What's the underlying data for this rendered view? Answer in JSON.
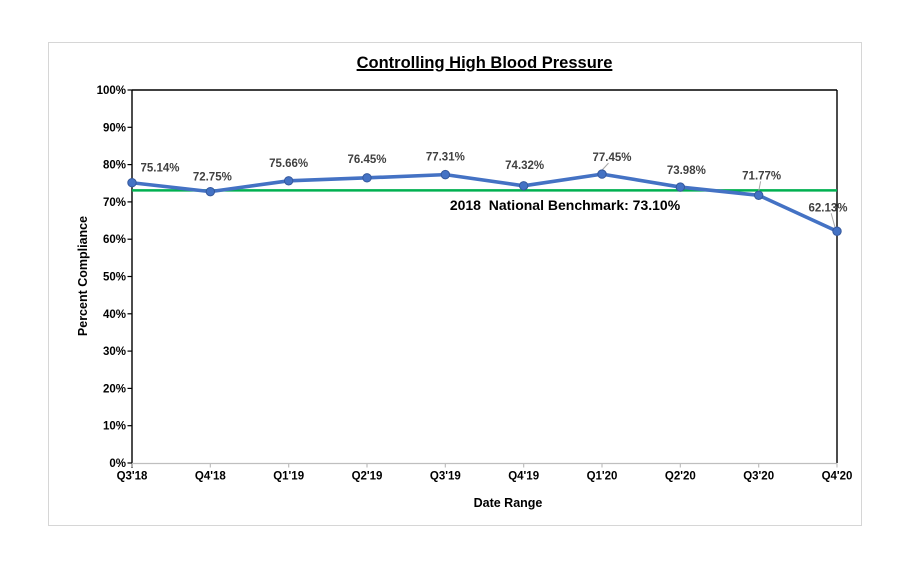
{
  "chart": {
    "title": "Controlling High Blood Pressure",
    "x_axis_title": "Date Range",
    "y_axis_title": "Percent Compliance",
    "benchmark_label": "2018  National Benchmark: 73.10%",
    "colors": {
      "series_line": "#4472C4",
      "marker_fill": "#4472C4",
      "marker_edge": "#35589C",
      "benchmark_line": "#00B050",
      "axis_line": "#000000",
      "x_axis_line": "#BFBFBF",
      "x_tick": "#BFBFBF",
      "data_label": "#404040",
      "leader_line": "#A6A6A6",
      "card_border": "#D6D6D6"
    }
  },
  "chart_data": {
    "type": "line",
    "title": "Controlling High Blood Pressure",
    "xlabel": "Date Range",
    "ylabel": "Percent Compliance",
    "categories": [
      "Q3'18",
      "Q4'18",
      "Q1'19",
      "Q2'19",
      "Q3'19",
      "Q4'19",
      "Q1'20",
      "Q2'20",
      "Q3'20",
      "Q4'20"
    ],
    "series": [
      {
        "name": "Percent Compliance",
        "values": [
          75.14,
          72.75,
          75.66,
          76.45,
          77.31,
          74.32,
          77.45,
          73.98,
          71.77,
          62.13
        ]
      }
    ],
    "data_labels": [
      "75.14%",
      "72.75%",
      "75.66%",
      "76.45%",
      "77.31%",
      "74.32%",
      "77.45%",
      "73.98%",
      "71.77%",
      "62.13%"
    ],
    "benchmark": {
      "value": 73.1,
      "label": "2018  National Benchmark: 73.10%",
      "year": "2018"
    },
    "ylim": [
      0,
      100
    ],
    "y_ticks": [
      "100%",
      "90%",
      "80%",
      "70%",
      "60%",
      "50%",
      "40%",
      "30%",
      "20%",
      "10%",
      "0%"
    ],
    "grid": false,
    "legend": "none",
    "markers": true
  }
}
